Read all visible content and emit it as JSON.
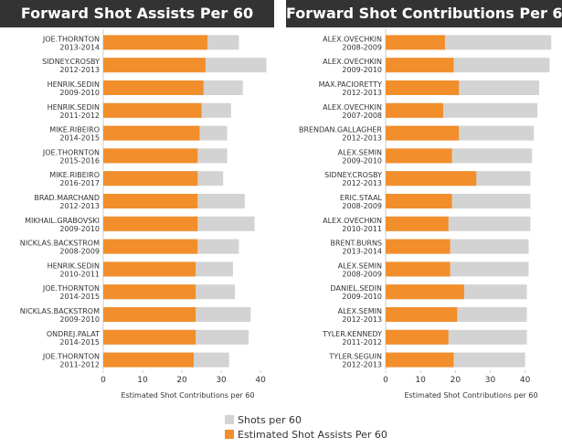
{
  "chart_data": [
    {
      "type": "bar",
      "orientation": "horizontal",
      "title": "Forward Shot Assists Per 60",
      "xlabel": "Estimated Shot Contributions per 60",
      "xlim": [
        0,
        43
      ],
      "xticks": [
        "0",
        "10",
        "20",
        "30",
        "40"
      ],
      "grid": false,
      "categories": [
        [
          "JOE.THORNTON",
          "2013-2014"
        ],
        [
          "SIDNEY.CROSBY",
          "2012-2013"
        ],
        [
          "HENRIK.SEDIN",
          "2009-2010"
        ],
        [
          "HENRIK.SEDIN",
          "2011-2012"
        ],
        [
          "MIKE.RIBEIRO",
          "2014-2015"
        ],
        [
          "JOE.THORNTON",
          "2015-2016"
        ],
        [
          "MIKE.RIBEIRO",
          "2016-2017"
        ],
        [
          "BRAD.MARCHAND",
          "2012-2013"
        ],
        [
          "MIKHAIL.GRABOVSKI",
          "2009-2010"
        ],
        [
          "NICKLAS.BACKSTROM",
          "2008-2009"
        ],
        [
          "HENRIK.SEDIN",
          "2010-2011"
        ],
        [
          "JOE.THORNTON",
          "2014-2015"
        ],
        [
          "NICKLAS.BACKSTROM",
          "2009-2010"
        ],
        [
          "ONDREJ.PALAT",
          "2014-2015"
        ],
        [
          "JOE.THORNTON",
          "2011-2012"
        ]
      ],
      "series": [
        {
          "name": "Shots per 60",
          "values": [
            34.5,
            41.5,
            35.5,
            32.5,
            31.5,
            31.5,
            30.5,
            36.0,
            38.5,
            34.5,
            33.0,
            33.5,
            37.5,
            37.0,
            32.0
          ]
        },
        {
          "name": "Estimated Shot Assists Per 60",
          "values": [
            26.5,
            26.0,
            25.5,
            25.0,
            24.5,
            24.0,
            24.0,
            24.0,
            24.0,
            24.0,
            23.5,
            23.5,
            23.5,
            23.5,
            23.0
          ]
        }
      ]
    },
    {
      "type": "bar",
      "orientation": "horizontal",
      "title": "Forward Shot Contributions Per 60",
      "xlabel": "Estimated Shot Contributions per 60",
      "xlim": [
        0,
        49
      ],
      "xticks": [
        "0",
        "10",
        "20",
        "30",
        "40"
      ],
      "grid": false,
      "categories": [
        [
          "ALEX.OVECHKIN",
          "2008-2009"
        ],
        [
          "ALEX.OVECHKIN",
          "2009-2010"
        ],
        [
          "MAX.PACIORETTY",
          "2012-2013"
        ],
        [
          "ALEX.OVECHKIN",
          "2007-2008"
        ],
        [
          "BRENDAN.GALLAGHER",
          "2012-2013"
        ],
        [
          "ALEX.SEMIN",
          "2009-2010"
        ],
        [
          "SIDNEY.CROSBY",
          "2012-2013"
        ],
        [
          "ERIC.STAAL",
          "2008-2009"
        ],
        [
          "ALEX.OVECHKIN",
          "2010-2011"
        ],
        [
          "BRENT.BURNS",
          "2013-2014"
        ],
        [
          "ALEX.SEMIN",
          "2008-2009"
        ],
        [
          "DANIEL.SEDIN",
          "2009-2010"
        ],
        [
          "ALEX.SEMIN",
          "2012-2013"
        ],
        [
          "TYLER.KENNEDY",
          "2011-2012"
        ],
        [
          "TYLER.SEGUIN",
          "2012-2013"
        ]
      ],
      "series": [
        {
          "name": "Shots per 60",
          "values": [
            47.5,
            47.0,
            44.0,
            43.5,
            42.5,
            42.0,
            41.5,
            41.5,
            41.5,
            41.0,
            41.0,
            40.5,
            40.5,
            40.5,
            40.0
          ]
        },
        {
          "name": "Estimated Shot Assists Per 60",
          "values": [
            17.0,
            19.5,
            21.0,
            16.5,
            21.0,
            19.0,
            26.0,
            19.0,
            18.0,
            18.5,
            18.5,
            22.5,
            20.5,
            18.0,
            19.5
          ]
        }
      ]
    }
  ],
  "legend": {
    "items": [
      {
        "label": "Shots per 60",
        "color": "#d3d3d3"
      },
      {
        "label": "Estimated Shot Assists Per 60",
        "color": "#f28e2b"
      }
    ]
  },
  "colors": {
    "shots": "#d3d3d3",
    "assists": "#f28e2b",
    "header_bg": "#333333"
  }
}
